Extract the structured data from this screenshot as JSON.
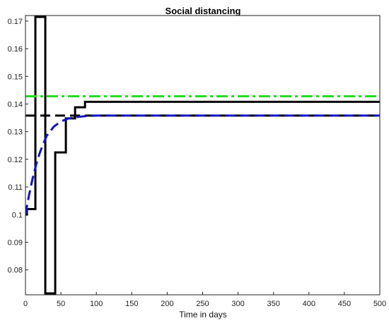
{
  "chart_data": {
    "type": "line",
    "title": "Social distancing",
    "xlabel": "Time in days",
    "ylabel": "",
    "xlim": [
      0,
      500
    ],
    "ylim": [
      0.071,
      0.172
    ],
    "x_ticks": [
      0,
      50,
      100,
      150,
      200,
      250,
      300,
      350,
      400,
      450,
      500
    ],
    "y_ticks": [
      0.08,
      0.09,
      0.1,
      0.11,
      0.12,
      0.13,
      0.14,
      0.15,
      0.16,
      0.17
    ],
    "x_tick_labels": [
      "0",
      "50",
      "100",
      "150",
      "200",
      "250",
      "300",
      "350",
      "400",
      "450",
      "500"
    ],
    "y_tick_labels": [
      "0.08",
      "0.09",
      "0.1",
      "0.11",
      "0.12",
      "0.13",
      "0.14",
      "0.15",
      "0.16",
      "0.17"
    ],
    "grid": false,
    "series": [
      {
        "style": "solid-step",
        "color": "#000000",
        "points": [
          [
            0,
            0.1
          ],
          [
            2,
            0.1
          ],
          [
            2,
            0.102
          ],
          [
            14,
            0.102
          ],
          [
            14,
            0.1715
          ],
          [
            28,
            0.1715
          ],
          [
            28,
            0.0715
          ],
          [
            42,
            0.0715
          ],
          [
            42,
            0.1225
          ],
          [
            57,
            0.1225
          ],
          [
            57,
            0.1348
          ],
          [
            70,
            0.1348
          ],
          [
            70,
            0.1388
          ],
          [
            84,
            0.1388
          ],
          [
            84,
            0.1408
          ],
          [
            500,
            0.1408
          ]
        ]
      },
      {
        "style": "dashed",
        "color": "#000000",
        "points": [
          [
            0,
            0.1358
          ],
          [
            500,
            0.1358
          ]
        ]
      },
      {
        "style": "dash-dot",
        "color": "#22dd22",
        "points": [
          [
            0,
            0.1428
          ],
          [
            500,
            0.1428
          ]
        ]
      },
      {
        "style": "dashed",
        "color": "#1414c8",
        "points": [
          [
            0,
            0.1
          ],
          [
            5,
            0.107
          ],
          [
            10,
            0.113
          ],
          [
            15,
            0.118
          ],
          [
            20,
            0.1222
          ],
          [
            25,
            0.1255
          ],
          [
            30,
            0.1285
          ],
          [
            40,
            0.1318
          ],
          [
            50,
            0.1337
          ],
          [
            60,
            0.1347
          ],
          [
            70,
            0.1352
          ],
          [
            80,
            0.1355
          ],
          [
            90,
            0.1357
          ],
          [
            100,
            0.1358
          ],
          [
            500,
            0.1358
          ]
        ]
      }
    ]
  }
}
